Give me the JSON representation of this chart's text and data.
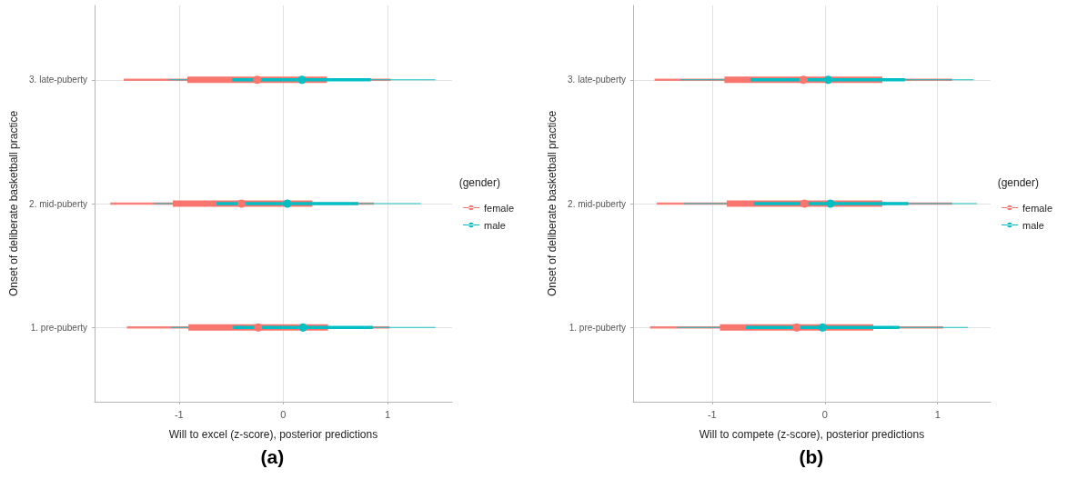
{
  "chart_data": [
    {
      "type": "scatter",
      "orientation": "horizontal",
      "categories": [
        "3. late-puberty",
        "2. mid-puberty",
        "1. pre-puberty"
      ],
      "xlim": [
        -1.81,
        1.62
      ],
      "xticks": [
        -1,
        0,
        1
      ],
      "xlabel": "Will to excel (z-score), posterior predictions",
      "ylabel": "Onset of deliberate basketball practice",
      "legend": "right",
      "legend_title": "(gender)",
      "grid": true,
      "marker": "circle",
      "annotations": [
        "(a)"
      ],
      "series": [
        {
          "type": "bar",
          "color": "#f8766d",
          "base": [
            -0.92,
            -1.06,
            -0.91
          ],
          "values": [
            1.34,
            1.34,
            1.34
          ]
        },
        {
          "type": "bar",
          "color": "#00bfc4",
          "base": [
            -0.49,
            -0.64,
            -0.48
          ],
          "values": [
            1.33,
            1.36,
            1.34
          ]
        },
        {
          "name": "female",
          "color": "#f8766d",
          "values": [
            -0.25,
            -0.4,
            -0.24
          ],
          "errors": [
            [
              -1.53,
              1.03
            ],
            [
              -1.66,
              0.87
            ],
            [
              -1.5,
              1.02
            ]
          ]
        },
        {
          "name": "male",
          "color": "#00bfc4",
          "values": [
            0.18,
            0.04,
            0.19
          ],
          "errors": [
            [
              -1.1,
              1.46
            ],
            [
              -1.24,
              1.32
            ],
            [
              -1.08,
              1.46
            ]
          ]
        }
      ]
    },
    {
      "type": "scatter",
      "orientation": "horizontal",
      "categories": [
        "3. late-puberty",
        "2. mid-puberty",
        "1. pre-puberty"
      ],
      "xlim": [
        -1.7,
        1.47
      ],
      "xticks": [
        -1,
        0,
        1
      ],
      "xlabel": "Will to compete (z-score), posterior predictions",
      "ylabel": "Onset of deliberate basketball practice",
      "legend": "right",
      "legend_title": "(gender)",
      "grid": true,
      "marker": "circle",
      "annotations": [
        "(b)"
      ],
      "series": [
        {
          "type": "bar",
          "color": "#f8766d",
          "base": [
            -0.89,
            -0.87,
            -0.93
          ],
          "values": [
            1.4,
            1.38,
            1.36
          ]
        },
        {
          "type": "bar",
          "color": "#00bfc4",
          "base": [
            -0.66,
            -0.63,
            -0.7
          ],
          "values": [
            1.37,
            1.37,
            1.36
          ]
        },
        {
          "name": "female",
          "color": "#f8766d",
          "values": [
            -0.19,
            -0.18,
            -0.25
          ],
          "errors": [
            [
              -1.51,
              1.13
            ],
            [
              -1.49,
              1.13
            ],
            [
              -1.55,
              1.05
            ]
          ]
        },
        {
          "name": "male",
          "color": "#00bfc4",
          "values": [
            0.03,
            0.05,
            -0.02
          ],
          "errors": [
            [
              -1.28,
              1.32
            ],
            [
              -1.25,
              1.35
            ],
            [
              -1.31,
              1.27
            ]
          ]
        }
      ]
    }
  ]
}
